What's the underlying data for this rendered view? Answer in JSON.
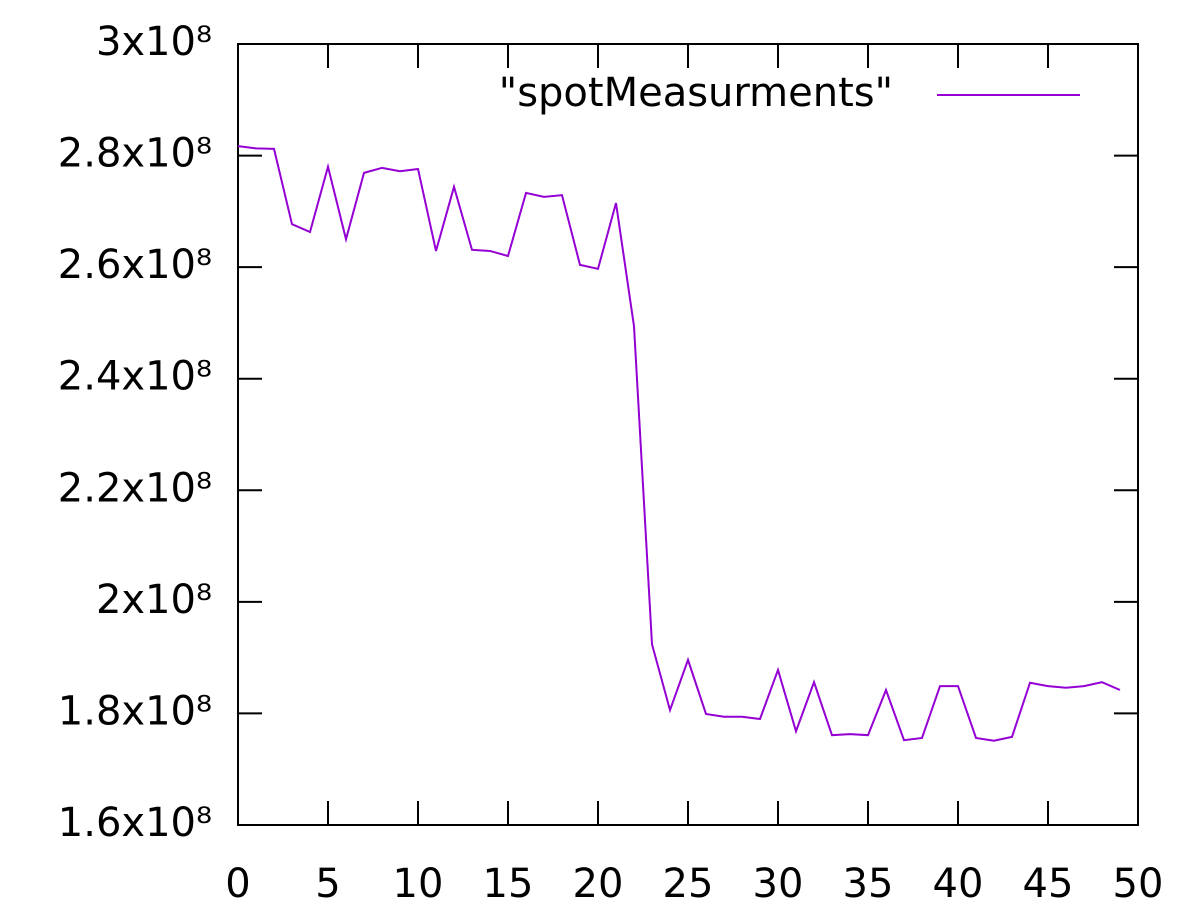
{
  "chart_data": {
    "type": "line",
    "x": [
      0,
      1,
      2,
      3,
      4,
      5,
      6,
      7,
      8,
      9,
      10,
      11,
      12,
      13,
      14,
      15,
      16,
      17,
      18,
      19,
      20,
      21,
      22,
      23,
      24,
      25,
      26,
      27,
      28,
      29,
      30,
      31,
      32,
      33,
      34,
      35,
      36,
      37,
      38,
      39,
      40,
      41,
      42,
      43,
      44,
      45,
      46,
      47,
      48,
      49
    ],
    "series": [
      {
        "name": "\"spotMeasurments\"",
        "color": "#9400d3",
        "values": [
          281700000,
          281300000,
          281200000,
          267700000,
          266300000,
          278000000,
          265000000,
          276900000,
          277800000,
          277200000,
          277600000,
          262900000,
          274400000,
          263100000,
          262900000,
          262000000,
          273300000,
          272600000,
          272900000,
          260400000,
          259700000,
          271500000,
          249400000,
          192400000,
          180600000,
          189600000,
          179900000,
          179400000,
          179400000,
          179000000,
          187800000,
          176800000,
          185600000,
          176100000,
          176300000,
          176100000,
          184200000,
          175200000,
          175600000,
          184900000,
          184900000,
          175600000,
          175100000,
          175800000,
          185500000,
          184900000,
          184600000,
          184900000,
          185600000,
          184200000
        ]
      }
    ],
    "xlim": [
      0,
      50
    ],
    "xticks": [
      0,
      5,
      10,
      15,
      20,
      25,
      30,
      35,
      40,
      45,
      50
    ],
    "ylim": [
      160000000,
      300000000
    ],
    "yticks": [
      {
        "value": 160000000,
        "label": "1.6x10⁸"
      },
      {
        "value": 180000000,
        "label": "1.8x10⁸"
      },
      {
        "value": 200000000,
        "label": "2x10⁸"
      },
      {
        "value": 220000000,
        "label": "2.2x10⁸"
      },
      {
        "value": 240000000,
        "label": "2.4x10⁸"
      },
      {
        "value": 260000000,
        "label": "2.6x10⁸"
      },
      {
        "value": 280000000,
        "label": "2.8x10⁸"
      },
      {
        "value": 300000000,
        "label": "3x10⁸"
      }
    ],
    "legend": "top-right",
    "grid": false
  }
}
